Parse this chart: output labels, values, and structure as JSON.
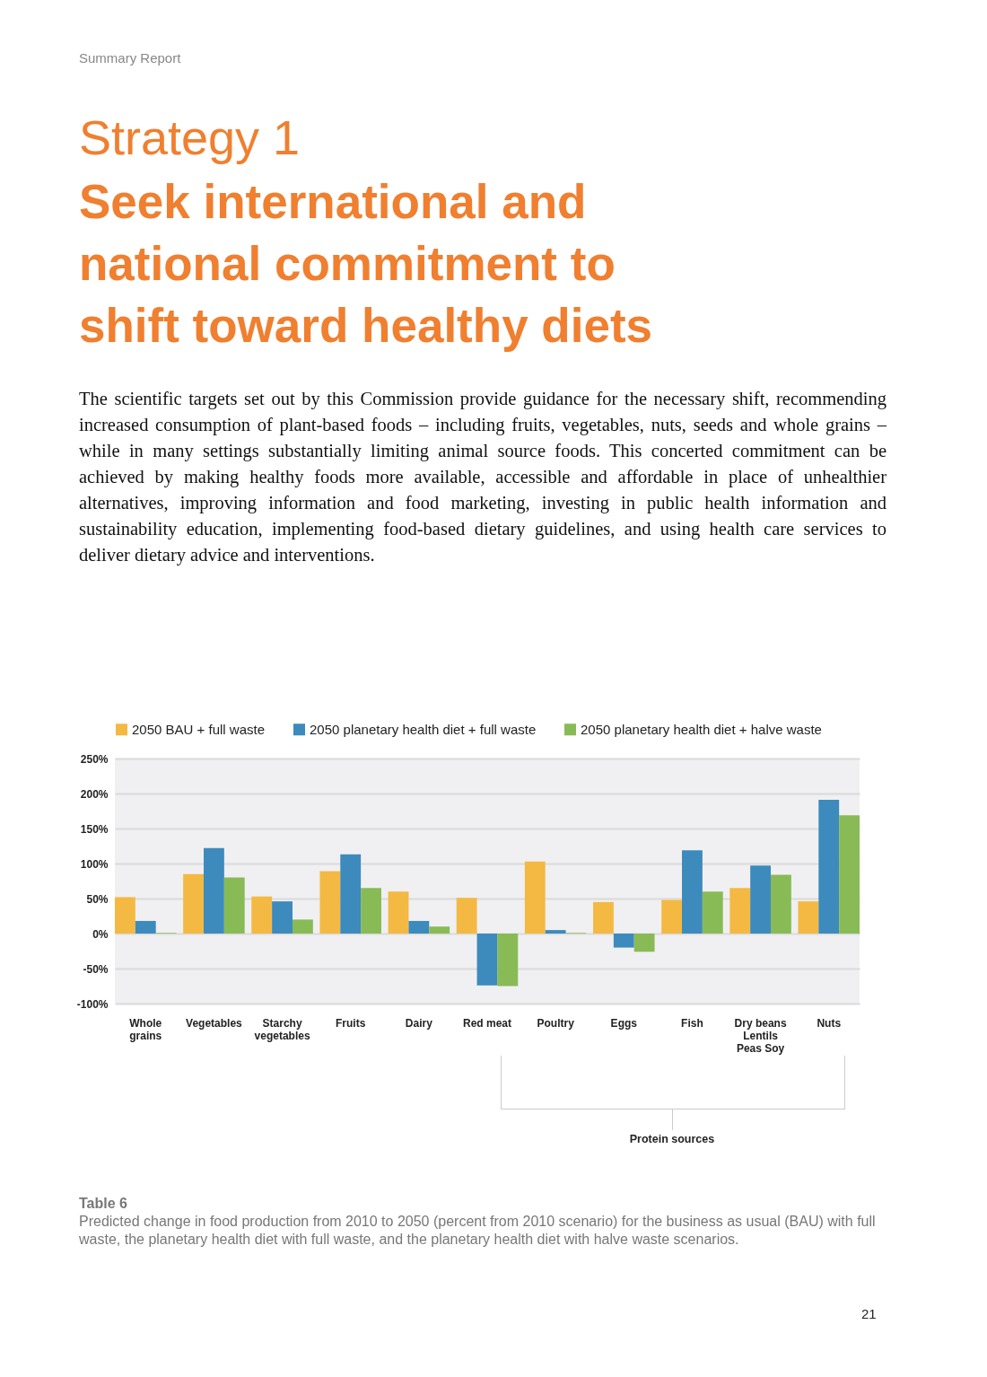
{
  "chart_data": {
    "type": "bar",
    "title": "Strategy 1",
    "subtitle": "Seek international and national commitment to shift toward healthy diets",
    "annotations": [
      "Summary Report",
      "The scientific targets set out by this Commission provide guidance for the necessary shift, recommending increased consumption of plant-based foods – including fruits, vegetables, nuts, seeds and whole grains – while in many settings substantially limiting animal source foods. This concerted commitment can be achieved by making healthy foods more available, accessible and affordable in place of unhealthier alternatives, improving information and food marketing, investing in public health information and sustainability education, implementing food-based dietary guidelines, and using health care services to deliver dietary advice and interventions.",
      "Protein sources",
      "Table 6",
      "Predicted change in food production from 2010 to 2050 (percent from 2010 scenario) for the business as usual (BAU) with full waste, the planetary health diet with full waste, and the planetary health diet with halve waste scenarios.",
      "21"
    ],
    "categories": [
      "Whole grains",
      "Vegetables",
      "Starchy vegetables",
      "Fruits",
      "Dairy",
      "Red meat",
      "Poultry",
      "Eggs",
      "Fish",
      "Dry beans Lentils Peas Soy",
      "Nuts"
    ],
    "series": [
      {
        "name": "2050 BAU + full waste",
        "color": "#f4b942",
        "values": [
          52,
          85,
          53,
          89,
          60,
          51,
          103,
          45,
          48,
          65,
          46
        ]
      },
      {
        "name": "2050 planetary health diet + full waste",
        "color": "#3d8abd",
        "values": [
          18,
          122,
          46,
          113,
          18,
          -74,
          5,
          -20,
          119,
          97,
          191
        ]
      },
      {
        "name": "2050 planetary health diet + halve waste",
        "color": "#88bb55",
        "values": [
          1,
          80,
          20,
          65,
          10,
          -75,
          1,
          -26,
          60,
          84,
          169
        ]
      }
    ],
    "ylim": [
      -100,
      250
    ],
    "yticks": [
      {
        "value": -100,
        "label": "-100%"
      },
      {
        "value": -50,
        "label": "-50%"
      },
      {
        "value": 0,
        "label": "0%"
      },
      {
        "value": 50,
        "label": "50%"
      },
      {
        "value": 100,
        "label": "100%"
      },
      {
        "value": 150,
        "label": "150%"
      },
      {
        "value": 200,
        "label": "200%"
      },
      {
        "value": 250,
        "label": "250%"
      }
    ],
    "grid": "y",
    "legend": "top"
  }
}
